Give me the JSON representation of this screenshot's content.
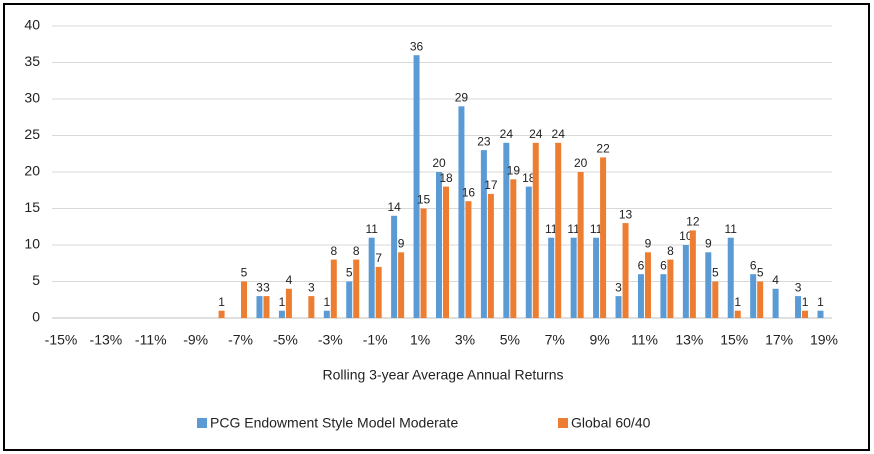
{
  "chart_data": {
    "type": "bar",
    "x_label": "Rolling 3-year Average Annual Returns",
    "categories": [
      "-15%",
      null,
      "-13%",
      null,
      "-11%",
      null,
      "-9%",
      null,
      "-7%",
      null,
      "-5%",
      null,
      "-3%",
      null,
      "-1%",
      null,
      "1%",
      null,
      "3%",
      null,
      "5%",
      null,
      "7%",
      null,
      "9%",
      null,
      "11%",
      null,
      "13%",
      null,
      "15%",
      null,
      "17%",
      null,
      "19%"
    ],
    "series": [
      {
        "name": "PCG Endowment Style Model Moderate",
        "color": "#5b9bd5",
        "values": [
          null,
          null,
          null,
          null,
          null,
          null,
          null,
          null,
          null,
          3,
          1,
          null,
          1,
          5,
          11,
          14,
          36,
          20,
          29,
          23,
          24,
          18,
          11,
          11,
          11,
          3,
          6,
          6,
          10,
          9,
          11,
          6,
          4,
          3,
          1
        ]
      },
      {
        "name": "Global 60/40",
        "color": "#ed7d31",
        "values": [
          null,
          null,
          null,
          null,
          null,
          null,
          null,
          1,
          5,
          3,
          4,
          3,
          8,
          8,
          7,
          9,
          15,
          18,
          16,
          17,
          19,
          24,
          24,
          20,
          22,
          13,
          9,
          8,
          12,
          5,
          1,
          5,
          null,
          1,
          null
        ]
      }
    ],
    "ylim": [
      0,
      40
    ],
    "yticks": [
      0,
      5,
      10,
      15,
      20,
      25,
      30,
      35,
      40
    ],
    "grid": true
  }
}
